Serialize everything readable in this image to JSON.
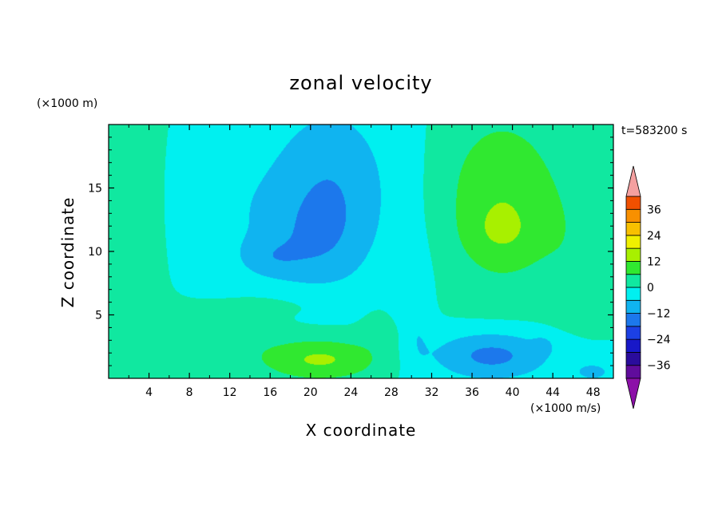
{
  "chart_data": {
    "type": "heatmap",
    "title": "zonal velocity",
    "xlabel": "X coordinate",
    "ylabel": "Z coordinate",
    "y_unit_label": "(×1000 m)",
    "x_unit_label": "(×1000 m/s)",
    "time_label": "t=583200 s",
    "xlim": [
      0,
      50
    ],
    "ylim": [
      0,
      20
    ],
    "x_ticks": [
      4,
      8,
      12,
      16,
      20,
      24,
      28,
      32,
      36,
      40,
      44,
      48
    ],
    "x_tick_labels": [
      "4",
      "8",
      "12",
      "16",
      "20",
      "24",
      "28",
      "32",
      "36",
      "40",
      "44",
      "48"
    ],
    "y_ticks": [
      5,
      10,
      15
    ],
    "y_tick_labels": [
      "5",
      "10",
      "15"
    ],
    "colorbar": {
      "levels": [
        -42,
        -36,
        -30,
        -24,
        -18,
        -12,
        -6,
        0,
        6,
        12,
        18,
        24,
        30,
        36,
        42
      ],
      "tick_values": [
        36,
        24,
        12,
        0,
        -12,
        -24,
        -36
      ],
      "tick_labels": [
        "36",
        "24",
        "12",
        "0",
        "−12",
        "−24",
        "−36"
      ],
      "colors": [
        "#600c9c",
        "#2a0c9c",
        "#1818c8",
        "#1c40e4",
        "#1c78ec",
        "#10b4f0",
        "#00f0f0",
        "#10e8a0",
        "#30e830",
        "#a8f000",
        "#f0f000",
        "#f8c000",
        "#f89000",
        "#f05000",
        "#e81818",
        "#d00010"
      ],
      "under_color": "#8c10a8",
      "over_color": "#f4a0a0"
    },
    "grid": false,
    "legend": "colorbar-right",
    "field_features": [
      {
        "x": 2,
        "z": 12,
        "sx": 3,
        "sz": 20,
        "v": 3
      },
      {
        "x": 12,
        "z": 14,
        "sx": 5,
        "sz": 7,
        "v": -4
      },
      {
        "x": 22,
        "z": 15,
        "sx": 6,
        "sz": 7,
        "v": -11
      },
      {
        "x": 20,
        "z": 10.5,
        "sx": 5,
        "sz": 4,
        "v": -6
      },
      {
        "x": 16,
        "z": 9.5,
        "sx": 3,
        "sz": 1.5,
        "v": -5
      },
      {
        "x": 30,
        "z": 14,
        "sx": 3,
        "sz": 10,
        "v": -1
      },
      {
        "x": 39,
        "z": 14,
        "sx": 6,
        "sz": 7,
        "v": 11
      },
      {
        "x": 39,
        "z": 11.5,
        "sx": 3,
        "sz": 2,
        "v": 4
      },
      {
        "x": 46,
        "z": 10,
        "sx": 3,
        "sz": 6,
        "v": 3
      },
      {
        "x": 21,
        "z": 1.5,
        "sx": 6,
        "sz": 1.7,
        "v": 13
      },
      {
        "x": 27,
        "z": 3.5,
        "sx": 2,
        "sz": 1.2,
        "v": 3
      },
      {
        "x": 10,
        "z": 3,
        "sx": 6,
        "sz": 2,
        "v": 4
      },
      {
        "x": 38,
        "z": 1.8,
        "sx": 6,
        "sz": 2,
        "v": -14
      },
      {
        "x": 43,
        "z": 2.6,
        "sx": 1,
        "sz": 0.7,
        "v": -5
      },
      {
        "x": 48,
        "z": 0.5,
        "sx": 2,
        "sz": 0.8,
        "v": -8
      },
      {
        "x": 30.5,
        "z": 5,
        "sx": 1.5,
        "sz": 5,
        "v": -5
      },
      {
        "x": 19,
        "z": 6,
        "sx": 8,
        "sz": 1.3,
        "v": 3
      }
    ]
  }
}
